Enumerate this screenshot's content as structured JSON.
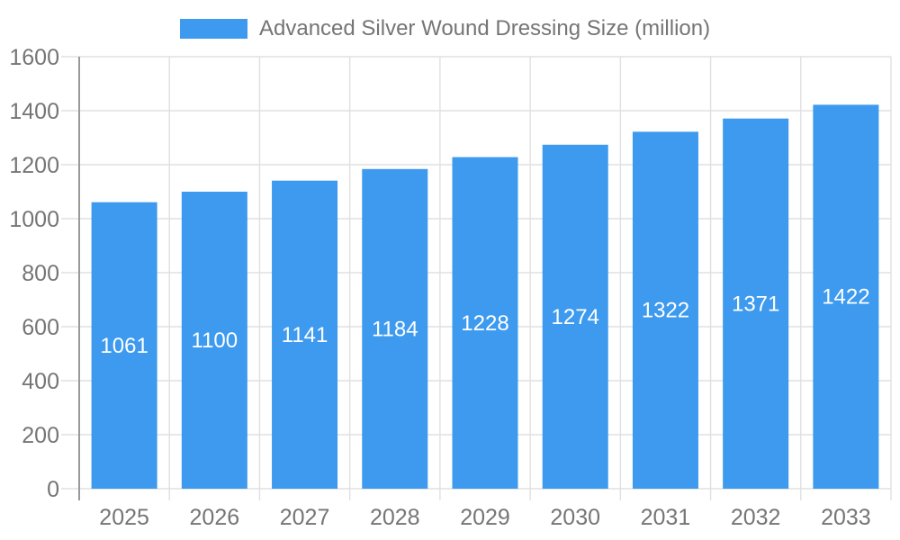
{
  "legend": {
    "label": "Advanced Silver Wound Dressing Size (million)",
    "swatch_color": "#3D9AEE"
  },
  "chart_data": {
    "type": "bar",
    "title": "",
    "xlabel": "",
    "ylabel": "",
    "categories": [
      "2025",
      "2026",
      "2027",
      "2028",
      "2029",
      "2030",
      "2031",
      "2032",
      "2033"
    ],
    "values": [
      1061,
      1100,
      1141,
      1184,
      1228,
      1274,
      1322,
      1371,
      1422
    ],
    "series_name": "Advanced Silver Wound Dressing Size (million)",
    "ylim": [
      0,
      1600
    ],
    "yticks": [
      0,
      200,
      400,
      600,
      800,
      1000,
      1200,
      1400,
      1600
    ],
    "grid": "both",
    "legend_position": "top-center",
    "value_labels_position": "inside-center",
    "colors": {
      "bar": "#3D9AEE",
      "axis_label": "#757575",
      "gridline": "#e0e0e0",
      "axis_line": "#999999",
      "value_label": "#ffffff",
      "background": "#ffffff"
    }
  }
}
